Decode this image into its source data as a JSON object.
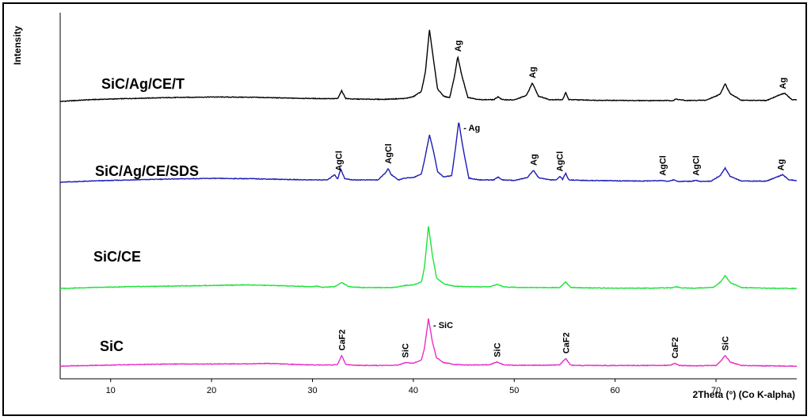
{
  "chart_data": {
    "type": "line",
    "xlabel": "2Theta (°) (Co K-alpha)",
    "ylabel": "Intensity",
    "xlim": [
      5,
      78
    ],
    "x_ticks": [
      10,
      20,
      30,
      40,
      50,
      60,
      70
    ],
    "grid": false,
    "series": [
      {
        "name": "SiC/Ag/CE/T",
        "color": "#000000",
        "baseline": 84,
        "x": [
          5,
          8,
          12,
          16,
          20,
          24,
          28,
          30,
          32,
          32.5,
          32.9,
          33.3,
          34,
          37,
          39.2,
          40,
          40.8,
          41.2,
          41.6,
          42.0,
          42.4,
          43,
          43.6,
          44.1,
          44.4,
          44.8,
          45.4,
          46.5,
          48.0,
          48.4,
          48.8,
          50,
          51.2,
          51.8,
          52.4,
          53.5,
          54.8,
          55.1,
          55.4,
          58,
          62,
          65.8,
          66,
          67,
          69,
          70.4,
          70.9,
          71.4,
          72.5,
          75,
          76.3,
          76.8,
          77.5,
          78
        ],
        "y": [
          0,
          6,
          10,
          13,
          15,
          14,
          11,
          10,
          9,
          10,
          36,
          10,
          8,
          7,
          10,
          16,
          34,
          100,
          242,
          140,
          42,
          18,
          12,
          88,
          151,
          88,
          14,
          6,
          6,
          16,
          6,
          5,
          20,
          62,
          18,
          6,
          6,
          30,
          6,
          4,
          3,
          3,
          8,
          3,
          4,
          24,
          60,
          26,
          4,
          3,
          22,
          28,
          6,
          5
        ]
      },
      {
        "name": "SiC/Ag/CE/SDS",
        "color": "#1c1cb4",
        "baseline": 84,
        "x": [
          5,
          8,
          12,
          16,
          20,
          24,
          28,
          30,
          31.5,
          32.2,
          32.5,
          32.8,
          33.2,
          34,
          36.5,
          37.2,
          37.5,
          37.8,
          38.5,
          39.2,
          40,
          40.8,
          41.2,
          41.6,
          42.0,
          42.4,
          43,
          43.8,
          44.2,
          44.5,
          44.9,
          45.5,
          46.5,
          48.0,
          48.4,
          48.8,
          50,
          51.3,
          51.9,
          52.4,
          53.5,
          54.2,
          54.5,
          54.8,
          55.1,
          55.4,
          57,
          60,
          62.5,
          64.7,
          65.2,
          65.8,
          66.2,
          67.5,
          68,
          68.5,
          69.5,
          70.4,
          70.9,
          71.4,
          72.5,
          75,
          76.2,
          76.6,
          77.2,
          78
        ],
        "y": [
          0,
          4,
          8,
          11,
          13,
          12,
          9,
          8,
          8,
          26,
          10,
          45,
          12,
          8,
          8,
          30,
          46,
          26,
          8,
          14,
          16,
          28,
          90,
          160,
          104,
          36,
          18,
          22,
          120,
          205,
          120,
          14,
          8,
          8,
          18,
          8,
          6,
          16,
          40,
          16,
          8,
          8,
          20,
          10,
          30,
          8,
          6,
          5,
          4,
          6,
          3,
          8,
          3,
          3,
          6,
          3,
          4,
          22,
          48,
          20,
          4,
          4,
          20,
          26,
          8,
          6
        ]
      },
      {
        "name": "SiC/CE",
        "color": "#1ee23a",
        "baseline": 84,
        "x": [
          5,
          8,
          12,
          16,
          20,
          23.5,
          26,
          28,
          29.8,
          30.5,
          31,
          32.2,
          32.9,
          33.6,
          35,
          38,
          39.2,
          40,
          40.8,
          41.1,
          41.5,
          41.9,
          42.3,
          43,
          44,
          45,
          47.5,
          48.3,
          49,
          50,
          52,
          54.5,
          55.1,
          55.6,
          57,
          60,
          63,
          65.6,
          66,
          66.6,
          68,
          69.8,
          70.5,
          70.9,
          71.4,
          72.5,
          75,
          78
        ],
        "y": [
          0,
          3,
          6,
          8,
          10,
          12,
          10,
          8,
          6,
          8,
          4,
          6,
          20,
          6,
          3,
          3,
          10,
          12,
          22,
          70,
          210,
          110,
          36,
          16,
          8,
          6,
          5,
          14,
          5,
          4,
          3,
          3,
          22,
          3,
          2,
          1,
          1,
          2,
          6,
          2,
          1,
          4,
          24,
          44,
          20,
          3,
          1,
          0
        ]
      },
      {
        "name": "SiC",
        "color": "#e62ec8",
        "baseline": 84,
        "x": [
          5,
          8,
          12,
          16,
          20,
          24,
          25.5,
          28,
          30,
          32,
          32.5,
          32.9,
          33.3,
          34,
          36,
          38.5,
          39.2,
          40,
          40.8,
          41.1,
          41.5,
          41.9,
          42.3,
          43,
          44,
          45,
          47.5,
          48.3,
          49,
          50,
          53,
          54.5,
          55.1,
          55.6,
          57,
          60,
          63,
          65.5,
          65.9,
          66.4,
          68,
          70,
          70.4,
          70.9,
          71.4,
          72.5,
          75,
          78
        ],
        "y": [
          0,
          2,
          5,
          7,
          7,
          8,
          9,
          6,
          4,
          4,
          6,
          36,
          6,
          3,
          2,
          3,
          12,
          10,
          20,
          60,
          160,
          80,
          28,
          12,
          6,
          4,
          4,
          14,
          4,
          3,
          3,
          4,
          26,
          3,
          2,
          2,
          2,
          3,
          10,
          2,
          1,
          2,
          14,
          36,
          14,
          2,
          1,
          0
        ]
      }
    ],
    "annotations": [
      {
        "text": "Ag",
        "series": "SiC/Ag/CE/T",
        "x": 44.4,
        "rotate": true
      },
      {
        "text": "Ag",
        "series": "SiC/Ag/CE/T",
        "x": 51.8,
        "rotate": true
      },
      {
        "text": "Ag",
        "series": "SiC/Ag/CE/T",
        "x": 76.6,
        "rotate": true
      },
      {
        "text": "AgCl",
        "series": "SiC/Ag/CE/SDS",
        "x": 32.6,
        "rotate": true
      },
      {
        "text": "AgCl",
        "series": "SiC/Ag/CE/SDS",
        "x": 37.5,
        "rotate": true
      },
      {
        "text": "- Ag",
        "series": "SiC/Ag/CE/SDS",
        "x": 44.5,
        "rotate": false
      },
      {
        "text": "Ag",
        "series": "SiC/Ag/CE/SDS",
        "x": 51.9,
        "rotate": true
      },
      {
        "text": "AgCl",
        "series": "SiC/Ag/CE/SDS",
        "x": 54.5,
        "rotate": true
      },
      {
        "text": "AgCl",
        "series": "SiC/Ag/CE/SDS",
        "x": 64.7,
        "rotate": true
      },
      {
        "text": "AgCl",
        "series": "SiC/Ag/CE/SDS",
        "x": 68.0,
        "rotate": true
      },
      {
        "text": "Ag",
        "series": "SiC/Ag/CE/SDS",
        "x": 76.4,
        "rotate": true
      },
      {
        "text": "CaF2",
        "series": "SiC",
        "x": 32.9,
        "rotate": true
      },
      {
        "text": "SiC",
        "series": "SiC",
        "x": 39.2,
        "rotate": true
      },
      {
        "text": "- SiC",
        "series": "SiC",
        "x": 41.5,
        "rotate": false
      },
      {
        "text": "SiC",
        "series": "SiC",
        "x": 48.3,
        "rotate": true
      },
      {
        "text": "CaF2",
        "series": "SiC",
        "x": 55.1,
        "rotate": true
      },
      {
        "text": "CaF2",
        "series": "SiC",
        "x": 65.9,
        "rotate": true
      },
      {
        "text": "SiC",
        "series": "SiC",
        "x": 70.9,
        "rotate": true
      }
    ]
  }
}
